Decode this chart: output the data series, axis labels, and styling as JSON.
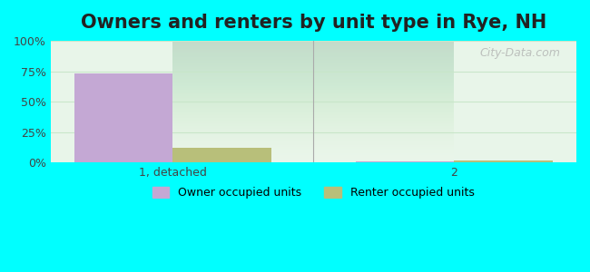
{
  "title": "Owners and renters by unit type in Rye, NH",
  "title_fontsize": 15,
  "categories": [
    "1, detached",
    "2"
  ],
  "owner_values": [
    73,
    1
  ],
  "renter_values": [
    12,
    2
  ],
  "owner_color": "#c4a8d4",
  "renter_color": "#b8bf7a",
  "ylim": [
    0,
    100
  ],
  "yticks": [
    0,
    25,
    50,
    75,
    100
  ],
  "ytick_labels": [
    "0%",
    "25%",
    "50%",
    "75%",
    "100%"
  ],
  "bar_width": 0.35,
  "background_color": "#e0faf0",
  "plot_bg_gradient_top": "#e8f5e9",
  "plot_bg_gradient_bottom": "#d0f0e0",
  "grid_color": "#c8e6c9",
  "legend_owner": "Owner occupied units",
  "legend_renter": "Renter occupied units",
  "watermark": "City-Data.com",
  "outer_bg": "#00ffff"
}
